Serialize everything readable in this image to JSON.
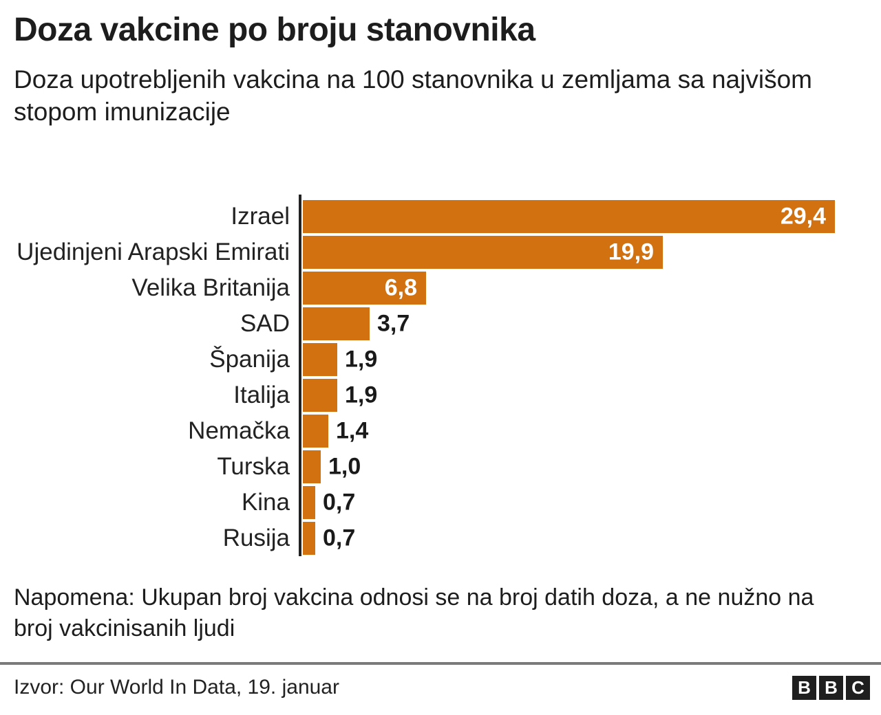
{
  "header": {
    "title": "Doza vakcine po broju stanovnika",
    "subtitle": "Doza upotrebljenih vakcina na 100 stanovnika u zemljama sa najvišom stopom imunizacije"
  },
  "chart_data": {
    "type": "bar",
    "orientation": "horizontal",
    "categories": [
      "Izrael",
      "Ujedinjeni Arapski Emirati",
      "Velika Britanija",
      "SAD",
      "Španija",
      "Italija",
      "Nemačka",
      "Turska",
      "Kina",
      "Rusija"
    ],
    "values": [
      29.4,
      19.9,
      6.8,
      3.7,
      1.9,
      1.9,
      1.4,
      1.0,
      0.7,
      0.7
    ],
    "value_labels": [
      "29,4",
      "19,9",
      "6,8",
      "3,7",
      "1,9",
      "1,9",
      "1,4",
      "1,0",
      "0,7",
      "0,7"
    ],
    "title": "Doza vakcine po broju stanovnika",
    "xlabel": "",
    "ylabel": "",
    "xlim": [
      0,
      29.4
    ],
    "grid": false,
    "legend": "none",
    "bar_color": "#d1710f",
    "axis_color": "#232323",
    "value_label_color_inside": "#ffffff",
    "value_label_color_outside": "#1a1a1a"
  },
  "note": "Napomena: Ukupan broj vakcina odnosi se na broj datih doza, a ne nužno na broj vakcinisanih ljudi",
  "footer": {
    "source": "Izvor: Our World In Data, 19. januar",
    "logo_letters": [
      "B",
      "B",
      "C"
    ]
  }
}
